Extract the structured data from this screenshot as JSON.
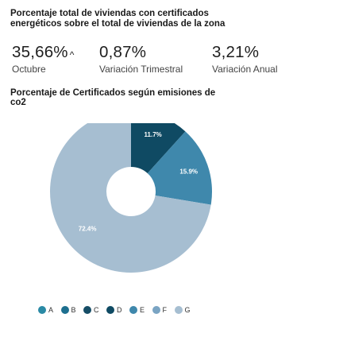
{
  "header": {
    "title": "Porcentaje total de viviendas con certificados energéticos sobre el total de viviendas de la zona"
  },
  "stats": [
    {
      "value": "35,66%",
      "label": "Octubre",
      "trend": "up",
      "caret": "^"
    },
    {
      "value": "0,87%",
      "label": "Variación Trimestral"
    },
    {
      "value": "3,21%",
      "label": "Variación Anual"
    }
  ],
  "chart_title": "Porcentaje de Certificados según emisiones de co2",
  "chart_data": {
    "type": "pie",
    "title": "Porcentaje de Certificados según emisiones de co2",
    "donut": true,
    "categories": [
      "A",
      "B",
      "C",
      "D",
      "E",
      "F",
      "G"
    ],
    "values": [
      0,
      0,
      0,
      11.7,
      15.9,
      0,
      72.4
    ],
    "data_labels": [
      "",
      "",
      "",
      "11.7%",
      "15.9%",
      "",
      "72.4%"
    ],
    "colors": [
      "#2a8aa5",
      "#1d6f8f",
      "#164d66",
      "#0f4a63",
      "#3f88ac",
      "#7aa4c3",
      "#a6bed1"
    ],
    "legend_position": "bottom"
  }
}
